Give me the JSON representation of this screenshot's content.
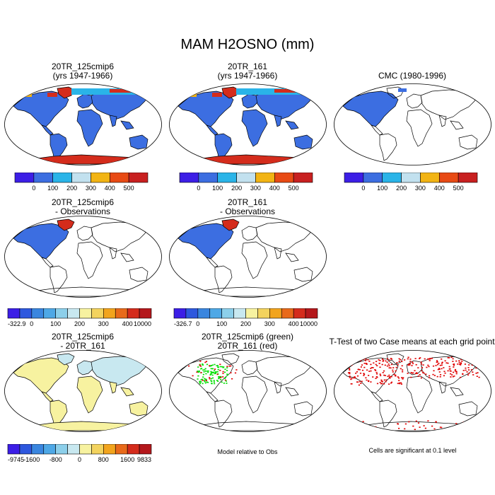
{
  "title": "MAM H2OSNO (mm)",
  "panels": [
    {
      "id": "p1",
      "title1": "20TR_125cmip6",
      "title2": "(yrs 1947-1966)"
    },
    {
      "id": "p2",
      "title1": "20TR_161",
      "title2": "(yrs 1947-1966)"
    },
    {
      "id": "p3",
      "title1": "CMC (1980-1996)",
      "title2": ""
    },
    {
      "id": "p4",
      "title1": "20TR_125cmip6",
      "title2": "- Observations"
    },
    {
      "id": "p5",
      "title1": "20TR_161",
      "title2": "- Observations"
    },
    {
      "id": "p6",
      "title1": "20TR_125cmip6",
      "title2": "- 20TR_161"
    },
    {
      "id": "p7",
      "title1": "20TR_125cmip6 (green)",
      "title2": "20TR_161 (red)"
    },
    {
      "id": "p8",
      "title1": "T-Test of two Case means at each grid point",
      "title2": ""
    }
  ],
  "colorbars": {
    "abs": {
      "colors": [
        "#3c1ee6",
        "#3c6ee1",
        "#2ab4e8",
        "#c2e1ef",
        "#f2b414",
        "#e84a14",
        "#c82020"
      ],
      "labels": [
        "0",
        "100",
        "200",
        "300",
        "400",
        "500"
      ]
    },
    "diff1": {
      "colors": [
        "#3c1ee6",
        "#2e58de",
        "#3a86df",
        "#4ea8e6",
        "#8ccfea",
        "#c8e8f0",
        "#f7f2a0",
        "#f3d35e",
        "#f2a41d",
        "#e86a1a",
        "#d42c1c",
        "#b4181c"
      ],
      "labels": [
        "-322.9",
        "0",
        "100",
        "200",
        "300",
        "400",
        "10000"
      ]
    },
    "diff2": {
      "colors": [
        "#3c1ee6",
        "#2e58de",
        "#3a86df",
        "#4ea8e6",
        "#8ccfea",
        "#c8e8f0",
        "#f7f2a0",
        "#f3d35e",
        "#f2a41d",
        "#e86a1a",
        "#d42c1c",
        "#b4181c"
      ],
      "labels": [
        "-326.7",
        "0",
        "100",
        "200",
        "300",
        "400",
        "10000"
      ]
    },
    "diff3": {
      "colors": [
        "#3c1ee6",
        "#2e58de",
        "#3a86df",
        "#4ea8e6",
        "#8ccfea",
        "#c8e8f0",
        "#f7f2a0",
        "#f3d35e",
        "#f2a41d",
        "#e86a1a",
        "#d42c1c",
        "#b4181c"
      ],
      "labels": [
        "-9745",
        "-1600",
        "-800",
        "0",
        "800",
        "1600",
        "9833"
      ]
    }
  },
  "notes": {
    "model_obs": "Model relative to Obs",
    "significance": "Cells are significant at 0.1 level"
  },
  "colors": {
    "land_blue": "#3c6ee1",
    "snow_cyan": "#2ab4e8",
    "snow_orange": "#f2b414",
    "snow_red": "#d42c1c",
    "diff_yellow": "#f7f2a0",
    "diff_lightblue": "#c8e8f0",
    "sig_green": "#00e000",
    "sig_red": "#e00000"
  }
}
